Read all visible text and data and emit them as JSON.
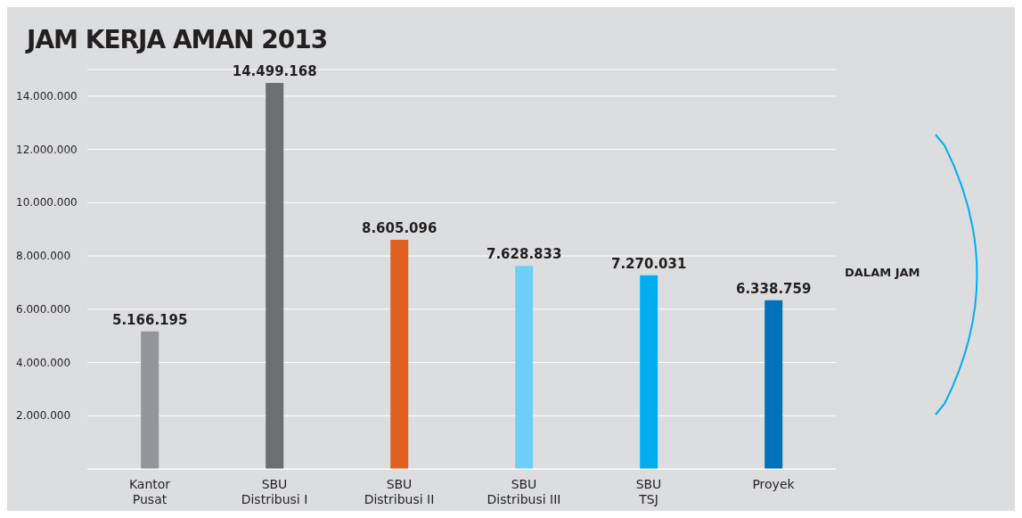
{
  "chart_data": {
    "type": "bar",
    "title": "JAM KERJA AMAN 2013",
    "categories": [
      "Kantor\nPusat",
      "SBU\nDistribusi I",
      "SBU\nDistribusi II",
      "SBU\nDistribusi III",
      "SBU\nTSJ",
      "Proyek"
    ],
    "values": [
      5166195,
      14499168,
      8605096,
      7628833,
      7270031,
      6338759
    ],
    "colors": [
      "#939598",
      "#6d6e71",
      "#e06020",
      "#6dcff6",
      "#00aeef",
      "#0072bc"
    ],
    "value_labels": [
      "5.166.195",
      "14.499.168",
      "8.605.096",
      "7.628.833",
      "7.270.031",
      "6.338.759"
    ],
    "ylim": [
      0,
      15000000
    ],
    "yticks": [
      {
        "value": 2000000,
        "label": "2.000.000"
      },
      {
        "value": 4000000,
        "label": "4.000.000"
      },
      {
        "value": 6000000,
        "label": "6.000.000"
      },
      {
        "value": 8000000,
        "label": "8.000.000"
      },
      {
        "value": 10000000,
        "label": "10.000.000"
      },
      {
        "value": 12000000,
        "label": "12.000.000"
      },
      {
        "value": 14000000,
        "label": "14.000.000"
      }
    ],
    "grid": "y",
    "legend": false,
    "annotations": [
      "DALAM JAM"
    ]
  }
}
